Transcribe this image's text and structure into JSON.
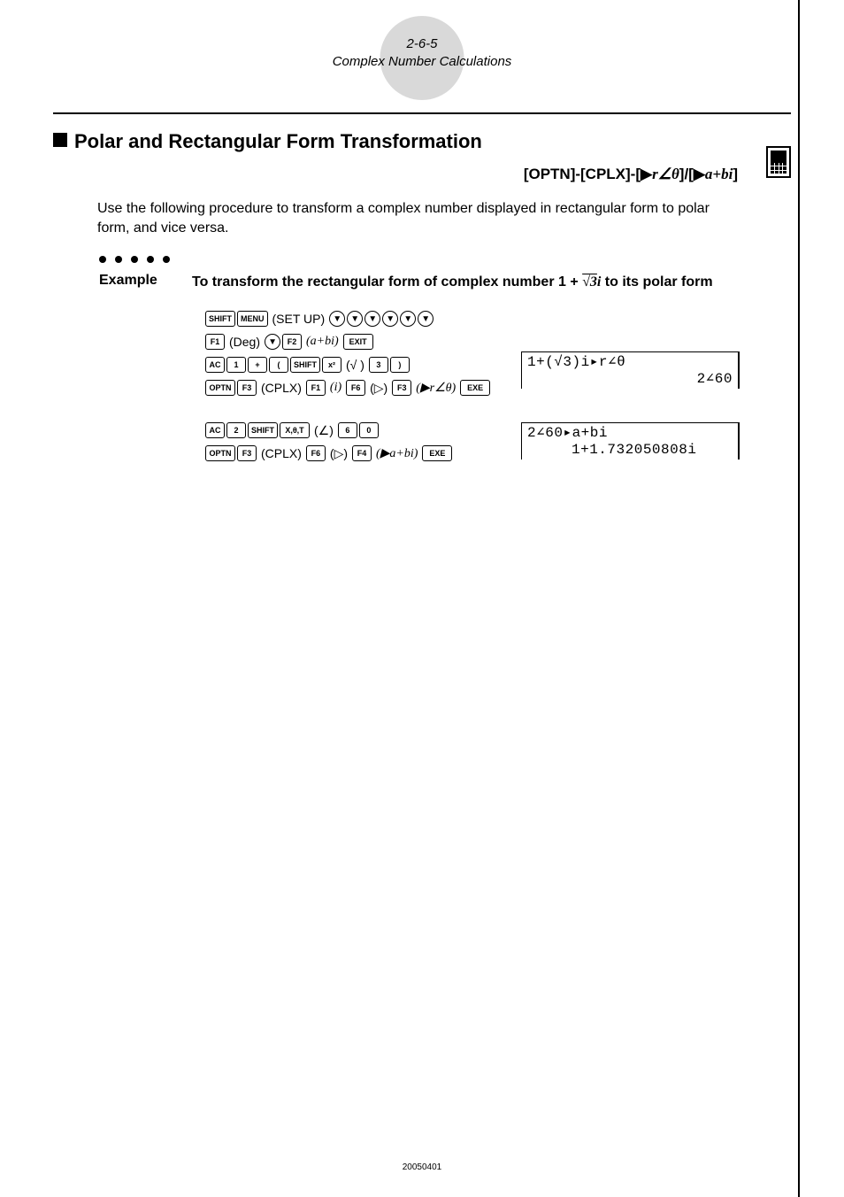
{
  "header": {
    "page_ref": "2-6-5",
    "chapter": "Complex Number Calculations"
  },
  "section": {
    "title": "Polar and Rectangular Form Transformation",
    "menu_path_prefix": "[OPTN]-[CPLX]-[",
    "menu_path_mid": "]/[",
    "menu_path_suffix": "]",
    "r_theta": "r∠θ",
    "a_bi": "a+bi",
    "arrow": "▶"
  },
  "intro": "Use the following procedure to transform a complex number displayed in rectangular form to polar form, and vice versa.",
  "example": {
    "label": "Example",
    "text_before": "To transform the rectangular form of complex number 1 + ",
    "radical": "√3",
    "i": "i",
    "text_after": " to its polar form"
  },
  "keys": {
    "shift": "SHIFT",
    "menu": "MENU",
    "setup": "(SET UP)",
    "down": "▼",
    "f1": "F1",
    "f2": "F2",
    "f3": "F3",
    "f4": "F4",
    "f6": "F6",
    "exit": "EXIT",
    "ac": "AC",
    "one": "1",
    "two": "2",
    "three": "3",
    "six": "6",
    "zero": "0",
    "plus": "+",
    "lparen": "(",
    "rparen": ")",
    "x2": "x²",
    "sqrt": "(√ )",
    "optn": "OPTN",
    "cplx": "(CPLX)",
    "i_label": "(i)",
    "deg": "(Deg)",
    "abi": "(a+bi)",
    "more": "(▷)",
    "r_theta_label": "(▶r∠θ)",
    "abi_label": "(▶a+bi)",
    "exe": "EXE",
    "xtheta": "X,θ,T",
    "angle": "(∠)"
  },
  "screen1": {
    "line1": "1+(√3)i▸r∠θ",
    "line2": "2∠60"
  },
  "screen2": {
    "line1": "2∠60▸a+bi",
    "line2": "1+1.732050808i"
  },
  "footer": "20050401"
}
